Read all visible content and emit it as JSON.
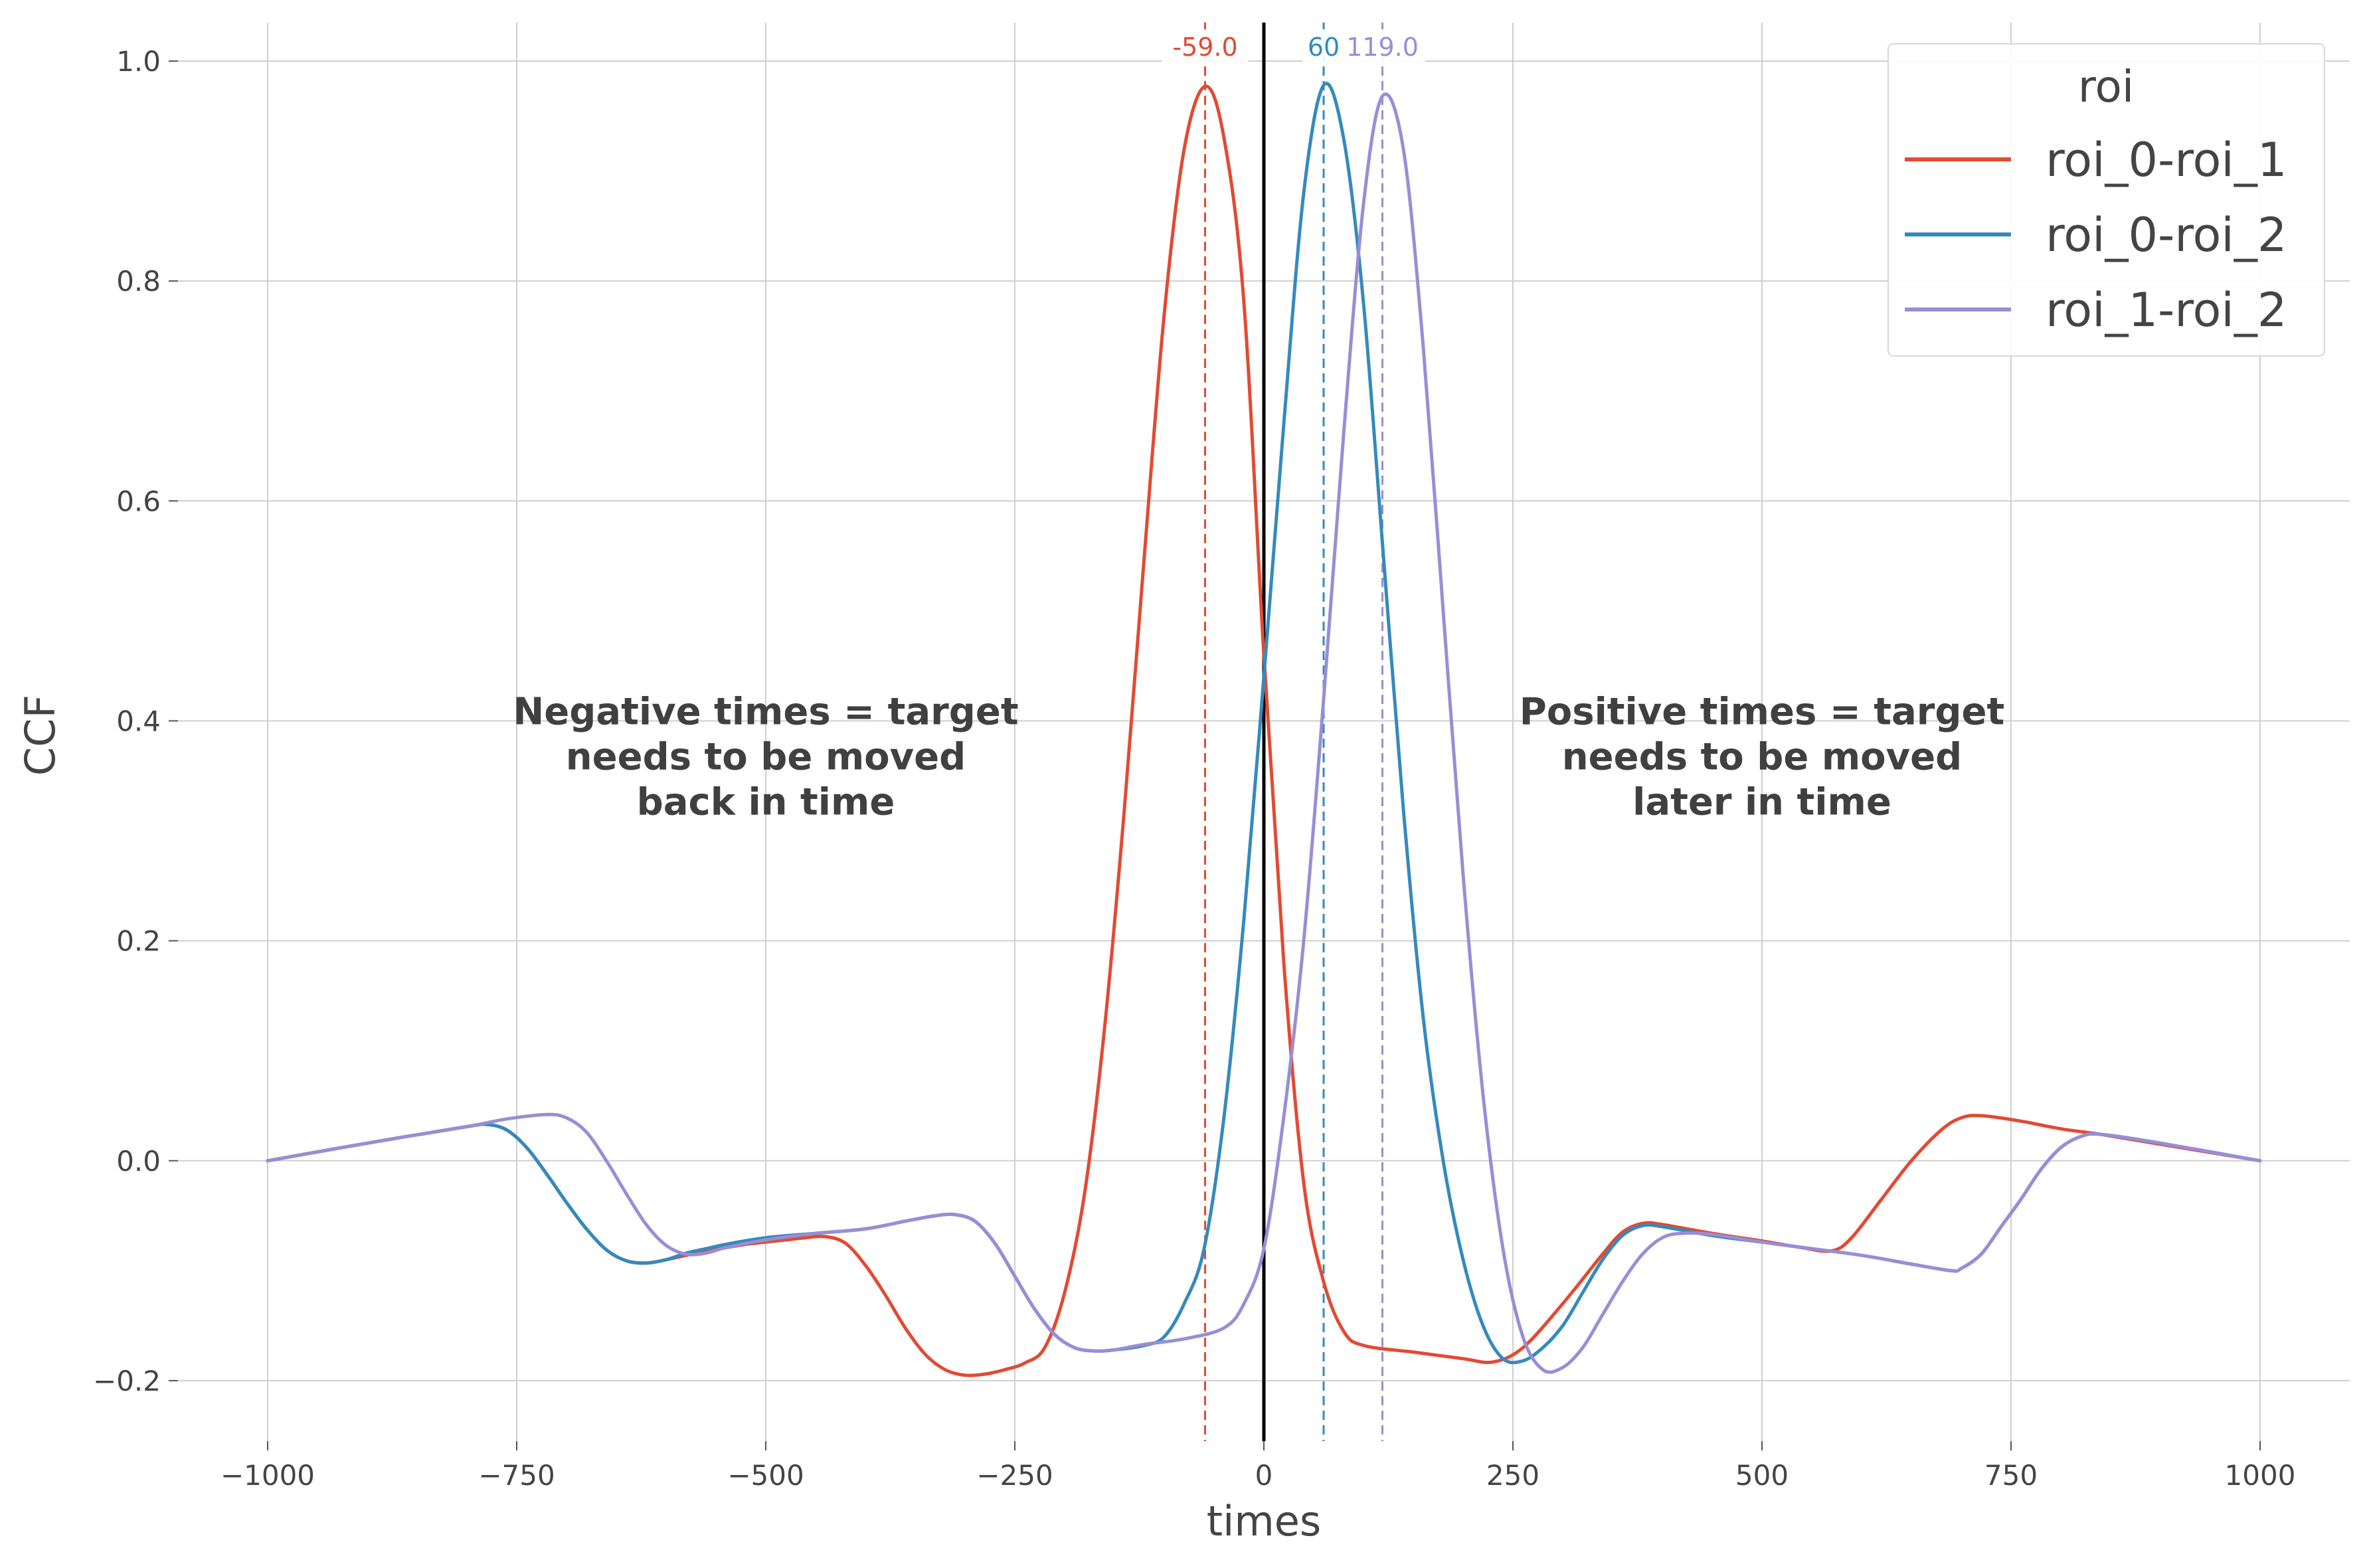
{
  "chart_data": {
    "type": "line",
    "xlabel": "times",
    "ylabel": "CCF",
    "xlim": [
      -1090,
      1090
    ],
    "ylim": [
      -0.255,
      1.035
    ],
    "xticks": [
      -1000,
      -750,
      -500,
      -250,
      0,
      250,
      500,
      750,
      1000
    ],
    "yticks": [
      -0.2,
      0.0,
      0.2,
      0.4,
      0.6,
      0.8,
      1.0
    ],
    "xtick_labels": [
      "−1000",
      "−750",
      "−500",
      "−250",
      "0",
      "250",
      "500",
      "750",
      "1000"
    ],
    "ytick_labels": [
      "−0.2",
      "0.0",
      "0.2",
      "0.4",
      "0.6",
      "0.8",
      "1.0"
    ],
    "grid": true,
    "legend": {
      "title": "roi",
      "position": "top-right"
    },
    "zero_line_x": 0,
    "series": [
      {
        "name": "roi_0-roi_1",
        "color": "#E24A33",
        "peak_x": -59.0,
        "peak_label": "-59.0",
        "points": [
          [
            -1000,
            0.0
          ],
          [
            -900,
            0.016
          ],
          [
            -800,
            0.031
          ],
          [
            -780,
            0.033
          ],
          [
            -760,
            0.028
          ],
          [
            -740,
            0.012
          ],
          [
            -720,
            -0.012
          ],
          [
            -700,
            -0.038
          ],
          [
            -680,
            -0.062
          ],
          [
            -660,
            -0.081
          ],
          [
            -640,
            -0.091
          ],
          [
            -620,
            -0.093
          ],
          [
            -600,
            -0.09
          ],
          [
            -580,
            -0.086
          ],
          [
            -560,
            -0.082
          ],
          [
            -540,
            -0.079
          ],
          [
            -520,
            -0.076
          ],
          [
            -500,
            -0.074
          ],
          [
            -480,
            -0.072
          ],
          [
            -460,
            -0.07
          ],
          [
            -440,
            -0.069
          ],
          [
            -420,
            -0.075
          ],
          [
            -400,
            -0.095
          ],
          [
            -380,
            -0.122
          ],
          [
            -360,
            -0.152
          ],
          [
            -340,
            -0.176
          ],
          [
            -320,
            -0.19
          ],
          [
            -300,
            -0.195
          ],
          [
            -280,
            -0.194
          ],
          [
            -260,
            -0.19
          ],
          [
            -240,
            -0.184
          ],
          [
            -220,
            -0.17
          ],
          [
            -200,
            -0.12
          ],
          [
            -180,
            -0.03
          ],
          [
            -160,
            0.12
          ],
          [
            -140,
            0.32
          ],
          [
            -120,
            0.55
          ],
          [
            -100,
            0.77
          ],
          [
            -80,
            0.92
          ],
          [
            -59,
            0.977
          ],
          [
            -40,
            0.93
          ],
          [
            -20,
            0.78
          ],
          [
            0,
            0.46
          ],
          [
            20,
            0.18
          ],
          [
            40,
            -0.02
          ],
          [
            60,
            -0.11
          ],
          [
            80,
            -0.155
          ],
          [
            100,
            -0.168
          ],
          [
            150,
            -0.174
          ],
          [
            200,
            -0.18
          ],
          [
            230,
            -0.183
          ],
          [
            260,
            -0.17
          ],
          [
            300,
            -0.13
          ],
          [
            340,
            -0.085
          ],
          [
            360,
            -0.065
          ],
          [
            380,
            -0.057
          ],
          [
            400,
            -0.058
          ],
          [
            450,
            -0.066
          ],
          [
            500,
            -0.073
          ],
          [
            540,
            -0.079
          ],
          [
            570,
            -0.082
          ],
          [
            590,
            -0.07
          ],
          [
            620,
            -0.035
          ],
          [
            650,
            0.0
          ],
          [
            680,
            0.028
          ],
          [
            700,
            0.039
          ],
          [
            720,
            0.041
          ],
          [
            760,
            0.036
          ],
          [
            800,
            0.029
          ],
          [
            840,
            0.024
          ],
          [
            900,
            0.015
          ],
          [
            1000,
            0.0
          ]
        ]
      },
      {
        "name": "roi_0-roi_2",
        "color": "#348ABD",
        "peak_x": 60,
        "peak_label": "60",
        "points": [
          [
            -1000,
            0.0
          ],
          [
            -900,
            0.016
          ],
          [
            -800,
            0.031
          ],
          [
            -780,
            0.033
          ],
          [
            -760,
            0.028
          ],
          [
            -740,
            0.012
          ],
          [
            -720,
            -0.012
          ],
          [
            -700,
            -0.038
          ],
          [
            -680,
            -0.062
          ],
          [
            -660,
            -0.081
          ],
          [
            -640,
            -0.091
          ],
          [
            -620,
            -0.093
          ],
          [
            -600,
            -0.09
          ],
          [
            -580,
            -0.084
          ],
          [
            -560,
            -0.08
          ],
          [
            -540,
            -0.076
          ],
          [
            -500,
            -0.07
          ],
          [
            -450,
            -0.066
          ],
          [
            -400,
            -0.062
          ],
          [
            -360,
            -0.055
          ],
          [
            -330,
            -0.05
          ],
          [
            -310,
            -0.049
          ],
          [
            -290,
            -0.055
          ],
          [
            -270,
            -0.075
          ],
          [
            -250,
            -0.105
          ],
          [
            -230,
            -0.135
          ],
          [
            -210,
            -0.158
          ],
          [
            -190,
            -0.17
          ],
          [
            -170,
            -0.173
          ],
          [
            -150,
            -0.172
          ],
          [
            -120,
            -0.168
          ],
          [
            -100,
            -0.16
          ],
          [
            -80,
            -0.13
          ],
          [
            -60,
            -0.08
          ],
          [
            -40,
            0.04
          ],
          [
            -20,
            0.22
          ],
          [
            0,
            0.44
          ],
          [
            20,
            0.67
          ],
          [
            40,
            0.88
          ],
          [
            60,
            0.978
          ],
          [
            80,
            0.93
          ],
          [
            100,
            0.78
          ],
          [
            120,
            0.55
          ],
          [
            140,
            0.32
          ],
          [
            160,
            0.13
          ],
          [
            180,
            0.0
          ],
          [
            200,
            -0.09
          ],
          [
            220,
            -0.15
          ],
          [
            240,
            -0.18
          ],
          [
            260,
            -0.182
          ],
          [
            280,
            -0.17
          ],
          [
            300,
            -0.15
          ],
          [
            320,
            -0.12
          ],
          [
            340,
            -0.09
          ],
          [
            360,
            -0.068
          ],
          [
            380,
            -0.059
          ],
          [
            400,
            -0.06
          ],
          [
            450,
            -0.068
          ],
          [
            500,
            -0.074
          ],
          [
            550,
            -0.08
          ],
          [
            600,
            -0.086
          ],
          [
            650,
            -0.094
          ],
          [
            690,
            -0.1
          ],
          [
            700,
            -0.098
          ],
          [
            720,
            -0.085
          ],
          [
            740,
            -0.06
          ],
          [
            760,
            -0.035
          ],
          [
            780,
            -0.008
          ],
          [
            800,
            0.012
          ],
          [
            820,
            0.022
          ],
          [
            840,
            0.024
          ],
          [
            900,
            0.016
          ],
          [
            1000,
            0.0
          ]
        ]
      },
      {
        "name": "roi_1-roi_2",
        "color": "#988ED5",
        "peak_x": 119.0,
        "peak_label": "119.0",
        "points": [
          [
            -1000,
            0.0
          ],
          [
            -900,
            0.016
          ],
          [
            -800,
            0.031
          ],
          [
            -760,
            0.038
          ],
          [
            -720,
            0.042
          ],
          [
            -700,
            0.039
          ],
          [
            -680,
            0.026
          ],
          [
            -660,
            0.0
          ],
          [
            -640,
            -0.03
          ],
          [
            -620,
            -0.058
          ],
          [
            -600,
            -0.077
          ],
          [
            -580,
            -0.085
          ],
          [
            -560,
            -0.084
          ],
          [
            -540,
            -0.079
          ],
          [
            -500,
            -0.072
          ],
          [
            -450,
            -0.066
          ],
          [
            -400,
            -0.062
          ],
          [
            -360,
            -0.055
          ],
          [
            -330,
            -0.05
          ],
          [
            -310,
            -0.049
          ],
          [
            -290,
            -0.055
          ],
          [
            -270,
            -0.075
          ],
          [
            -250,
            -0.105
          ],
          [
            -230,
            -0.135
          ],
          [
            -210,
            -0.158
          ],
          [
            -190,
            -0.17
          ],
          [
            -170,
            -0.173
          ],
          [
            -150,
            -0.172
          ],
          [
            -120,
            -0.167
          ],
          [
            -80,
            -0.162
          ],
          [
            -40,
            -0.152
          ],
          [
            -20,
            -0.13
          ],
          [
            0,
            -0.08
          ],
          [
            20,
            0.04
          ],
          [
            40,
            0.2
          ],
          [
            60,
            0.42
          ],
          [
            80,
            0.66
          ],
          [
            100,
            0.87
          ],
          [
            119,
            0.968
          ],
          [
            140,
            0.92
          ],
          [
            160,
            0.74
          ],
          [
            180,
            0.5
          ],
          [
            200,
            0.26
          ],
          [
            220,
            0.06
          ],
          [
            240,
            -0.08
          ],
          [
            260,
            -0.16
          ],
          [
            280,
            -0.19
          ],
          [
            300,
            -0.188
          ],
          [
            320,
            -0.17
          ],
          [
            340,
            -0.14
          ],
          [
            360,
            -0.11
          ],
          [
            380,
            -0.085
          ],
          [
            400,
            -0.07
          ],
          [
            420,
            -0.066
          ],
          [
            450,
            -0.067
          ],
          [
            500,
            -0.074
          ],
          [
            550,
            -0.08
          ],
          [
            600,
            -0.086
          ],
          [
            650,
            -0.094
          ],
          [
            690,
            -0.1
          ],
          [
            700,
            -0.098
          ],
          [
            720,
            -0.085
          ],
          [
            740,
            -0.06
          ],
          [
            760,
            -0.035
          ],
          [
            780,
            -0.008
          ],
          [
            800,
            0.012
          ],
          [
            820,
            0.022
          ],
          [
            840,
            0.024
          ],
          [
            900,
            0.016
          ],
          [
            1000,
            0.0
          ]
        ]
      }
    ],
    "annotations": [
      {
        "lines": [
          "Negative times = target",
          "needs to be moved",
          "back in time"
        ],
        "x": -500,
        "y": 0.38
      },
      {
        "lines": [
          "Positive times = target",
          "needs to be moved",
          "later in time"
        ],
        "x": 500,
        "y": 0.38
      }
    ]
  }
}
